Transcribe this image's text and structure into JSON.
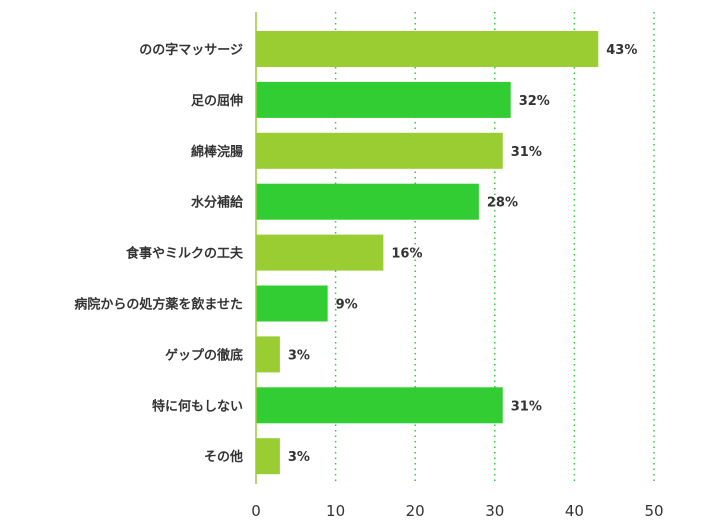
{
  "colors": {
    "bar_light": "#9acd32",
    "bar_dark": "#32cd32",
    "axis": "#9acd32",
    "grid": "#32cd32"
  },
  "chart_data": {
    "type": "bar",
    "orientation": "horizontal",
    "categories": [
      "のの字マッサージ",
      "足の屈伸",
      "綿棒浣腸",
      "水分補給",
      "食事やミルクの工夫",
      "病院からの処方薬を飲ませた",
      "ゲップの徹底",
      "特に何もしない",
      "その他"
    ],
    "values": [
      43,
      32,
      31,
      28,
      16,
      9,
      3,
      31,
      3
    ],
    "value_labels": [
      "43%",
      "32%",
      "31%",
      "28%",
      "16%",
      "9%",
      "3%",
      "31%",
      "3%"
    ],
    "bar_colors": [
      "#9acd32",
      "#32cd32",
      "#9acd32",
      "#32cd32",
      "#9acd32",
      "#32cd32",
      "#9acd32",
      "#32cd32",
      "#9acd32"
    ],
    "xlim": [
      0,
      50
    ],
    "xticks": [
      "0",
      "10",
      "20",
      "30",
      "40",
      "50"
    ],
    "title": "",
    "xlabel": "",
    "ylabel": "",
    "grid": "vertical dotted"
  }
}
